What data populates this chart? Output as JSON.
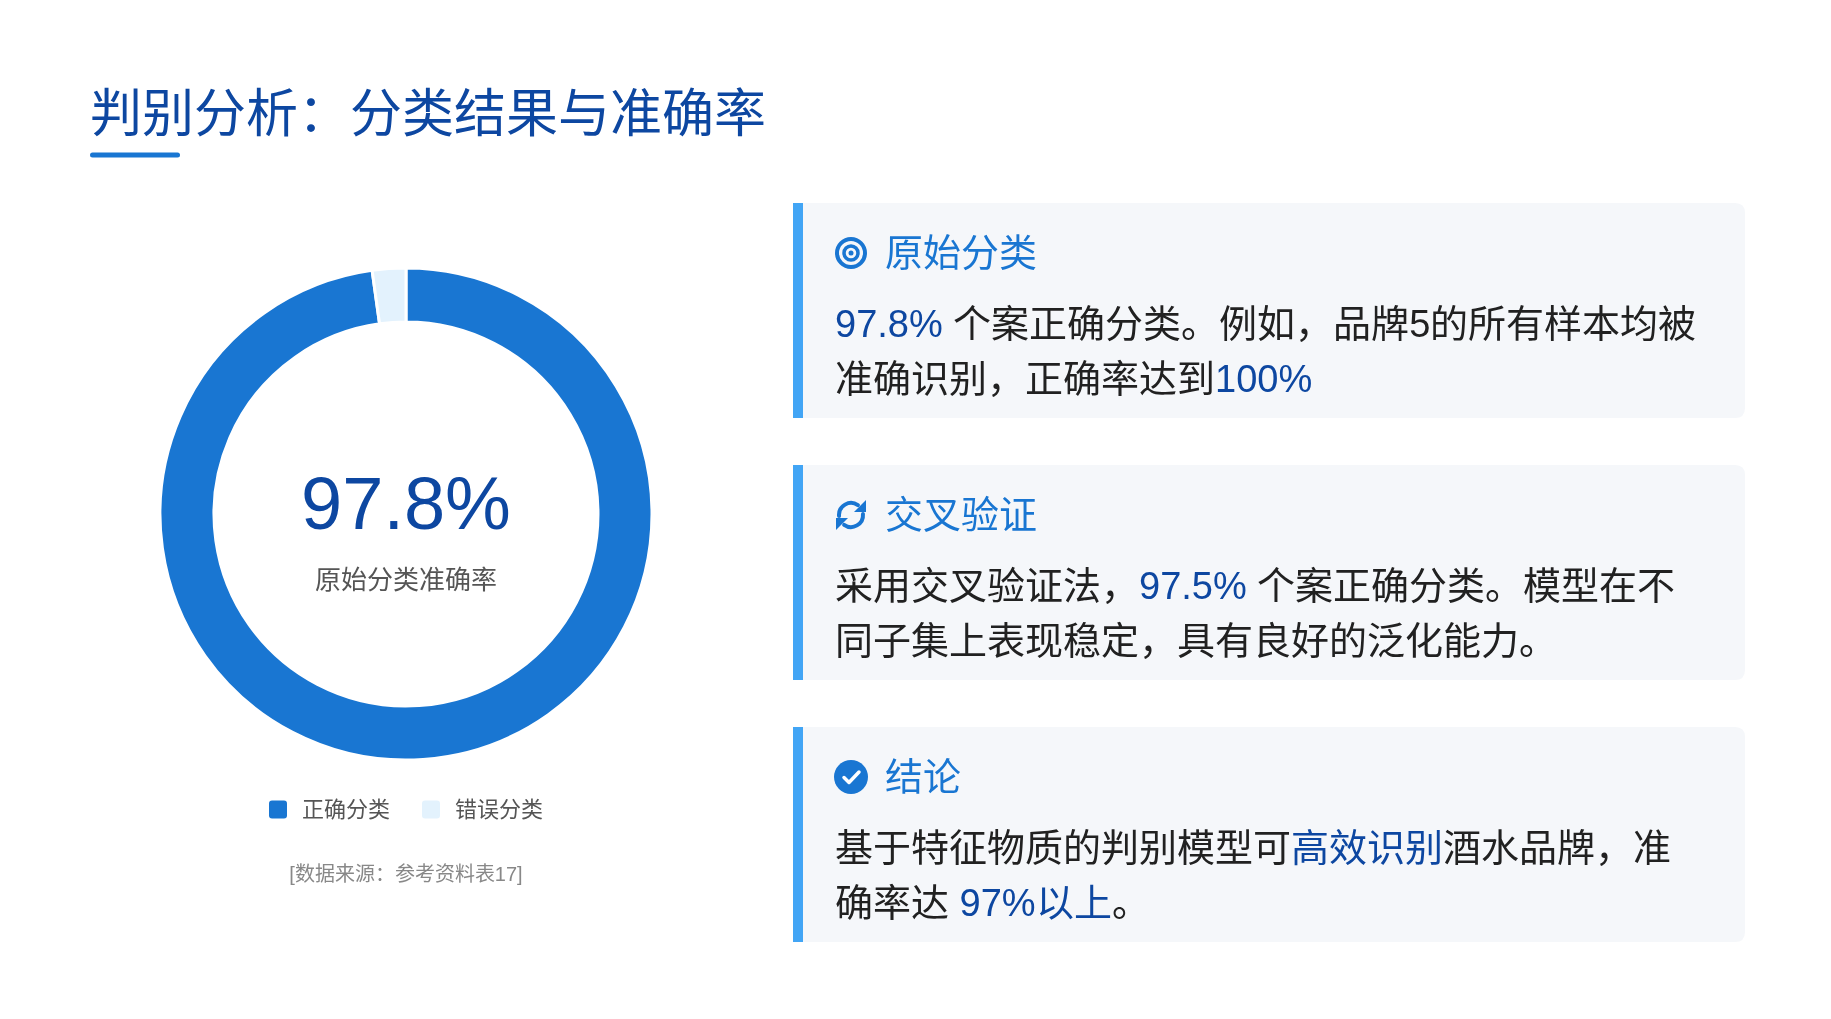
{
  "chart_data": [
    {
      "type": "donut",
      "title": "判别分析：分类结果与准确率",
      "categories": [
        "正确分类",
        "错误分类"
      ],
      "values": [
        97.8,
        2.2
      ],
      "colors": [
        "#1976d2",
        "#e3f2fd"
      ],
      "legend": "bottom",
      "annotations": [
        "97.8%",
        "原始分类准确率",
        "[数据来源：参考资料表17]"
      ]
    },
    {
      "type": "other",
      "title": "原始分类",
      "annotations": [
        "97.8%",
        " 个案正确分类。例如，品牌5的所有样本均被",
        "准确识别，正确率达到",
        "100%"
      ],
      "colors": [
        "#0d47a1",
        "#212121",
        "#212121",
        "#0d47a1"
      ]
    },
    {
      "type": "other",
      "title": "交叉验证",
      "annotations": [
        "采用交叉验证法，",
        "97.5%",
        " 个案正确分类。模型在不",
        "同子集上表现稳定，具有良好的泛化能力。"
      ],
      "colors": [
        "#212121",
        "#0d47a1",
        "#212121",
        "#212121"
      ]
    },
    {
      "type": "other",
      "title": "结论",
      "annotations": [
        "基于特征物质的判别模型可",
        "高效识别",
        "酒水品牌，准",
        "确率达 ",
        "97%以上",
        "。"
      ],
      "colors": [
        "#212121",
        "#0d47a1",
        "#212121",
        "#212121",
        "#0d47a1",
        "#212121"
      ]
    }
  ]
}
